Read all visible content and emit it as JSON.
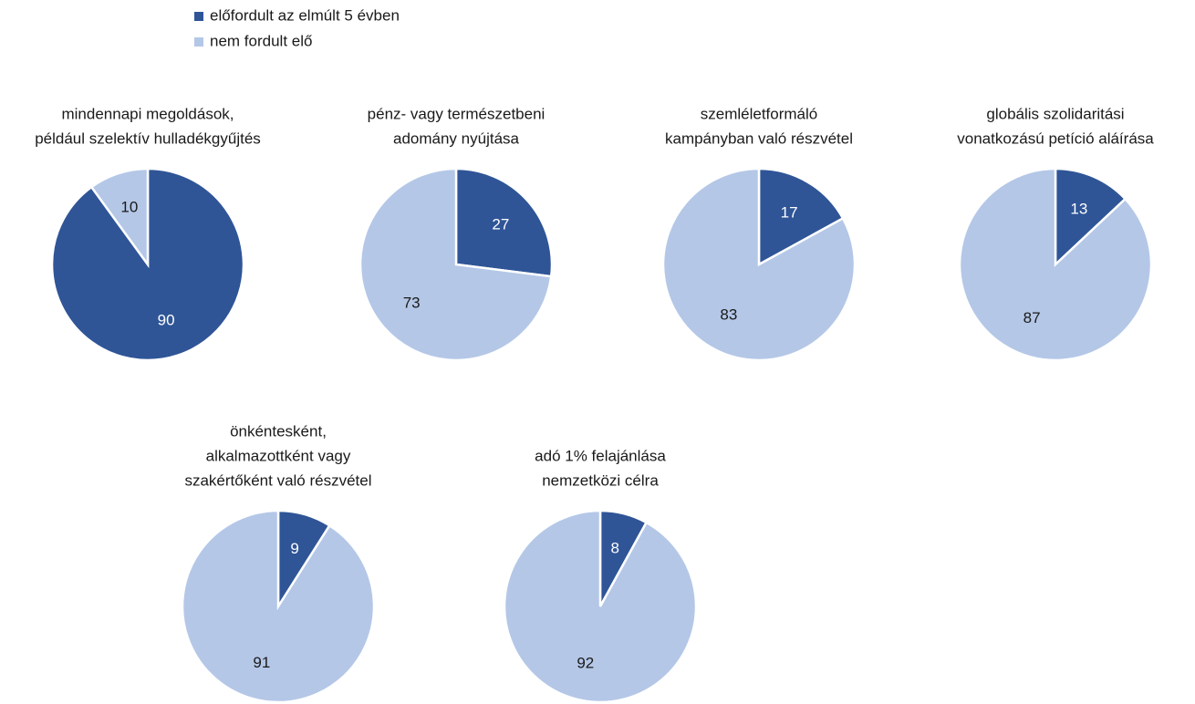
{
  "legend": {
    "entries": [
      {
        "name": "előfordult az elmúlt 5 évben",
        "color": "#2f5597"
      },
      {
        "name": "nem fordult elő",
        "color": "#b4c7e7"
      }
    ]
  },
  "chart_data": [
    {
      "type": "pie",
      "title": [
        "mindennapi megoldások,",
        "például szelektív hulladékgyűjtés"
      ],
      "values": [
        90,
        10
      ]
    },
    {
      "type": "pie",
      "title": [
        "pénz- vagy természetbeni",
        "adomány nyújtása"
      ],
      "values": [
        27,
        73
      ]
    },
    {
      "type": "pie",
      "title": [
        "szemléletformáló",
        "kampányban való részvétel"
      ],
      "values": [
        17,
        83
      ]
    },
    {
      "type": "pie",
      "title": [
        "globális szolidaritási",
        "vonatkozású petíció aláírása"
      ],
      "values": [
        13,
        87
      ]
    },
    {
      "type": "pie",
      "title": [
        "önkéntesként,",
        "alkalmazottként vagy",
        "szakértőként való részvétel"
      ],
      "values": [
        9,
        91
      ]
    },
    {
      "type": "pie",
      "title": [
        "adó 1% felajánlása",
        "nemzetközi célra"
      ],
      "values": [
        8,
        92
      ]
    }
  ]
}
